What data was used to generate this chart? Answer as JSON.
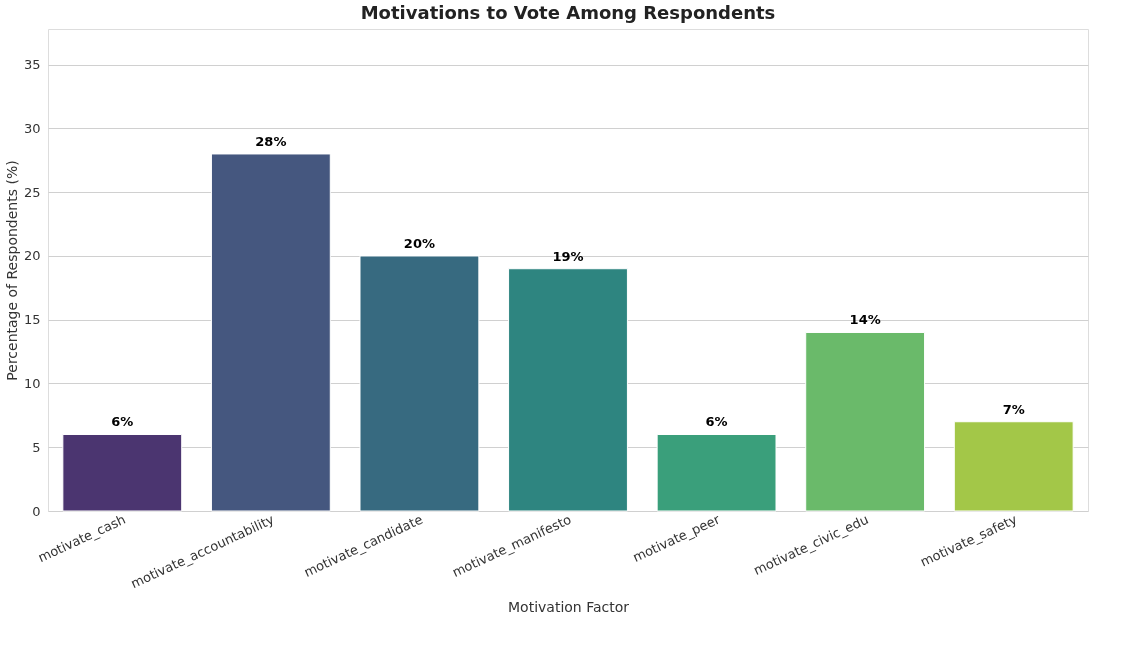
{
  "chart_data": {
    "type": "bar",
    "title": "Motivations to Vote Among Respondents",
    "xlabel": "Motivation Factor",
    "ylabel": "Percentage of Respondents (%)",
    "categories": [
      "motivate_cash",
      "motivate_accountability",
      "motivate_candidate",
      "motivate_manifesto",
      "motivate_peer",
      "motivate_civic_edu",
      "motivate_safety"
    ],
    "values": [
      6,
      28,
      20,
      19,
      6,
      14,
      7
    ],
    "value_labels": [
      "6%",
      "28%",
      "20%",
      "19%",
      "6%",
      "14%",
      "7%"
    ],
    "colors": [
      "#4b3570",
      "#45577f",
      "#376a80",
      "#2e8580",
      "#3a9f7b",
      "#6aba6a",
      "#a3c748"
    ],
    "ylim": [
      0,
      37.8
    ],
    "yticks": [
      0,
      5,
      10,
      15,
      20,
      25,
      30,
      35
    ],
    "grid": "y"
  }
}
